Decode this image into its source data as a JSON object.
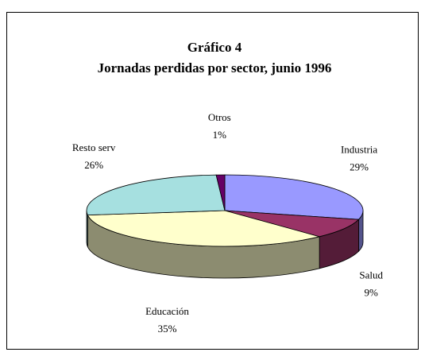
{
  "chart_data": {
    "type": "pie",
    "title": "Gráfico 4",
    "subtitle": "Jornadas perdidas por sector, junio 1996",
    "categories": [
      "Industria",
      "Salud",
      "Educación",
      "Resto serv",
      "Otros"
    ],
    "values": [
      29,
      9,
      35,
      26,
      1
    ],
    "value_labels": [
      "29%",
      "9%",
      "35%",
      "26%",
      "1%"
    ],
    "colors": [
      "#9999ff",
      "#993366",
      "#ffffcc",
      "#a6e0e0",
      "#660066"
    ]
  }
}
